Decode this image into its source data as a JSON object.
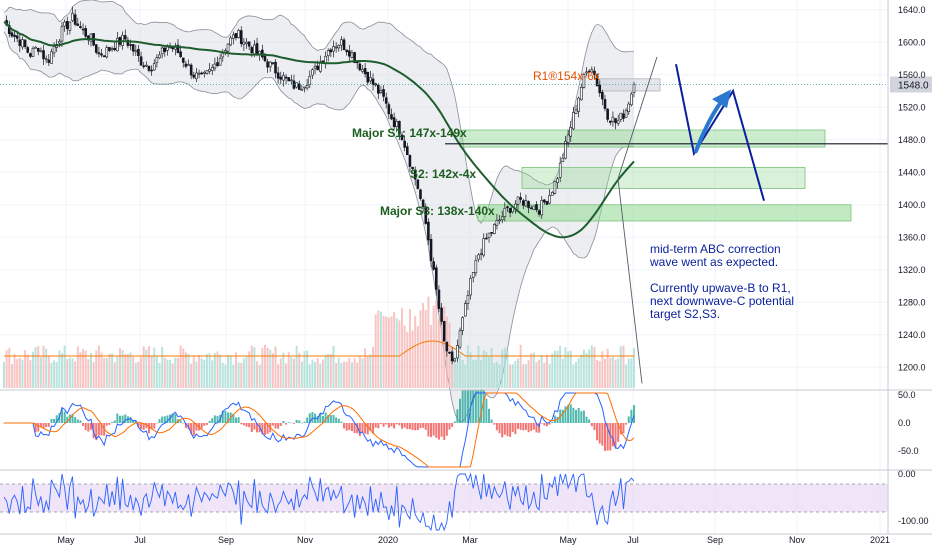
{
  "chart_data": {
    "type": "candlestick",
    "price_axis": {
      "ticks": [
        1640.0,
        1600.0,
        1560.0,
        1520.0,
        1480.0,
        1440.0,
        1400.0,
        1360.0,
        1320.0,
        1280.0,
        1240.0,
        1200.0
      ],
      "current_price": "1548.0",
      "ylim": [
        1172,
        1652
      ]
    },
    "time_axis": {
      "labels": [
        "May",
        "Jul",
        "Sep",
        "Nov",
        "2020",
        "Mar",
        "May",
        "Jul",
        "Sep",
        "Nov",
        "2021"
      ]
    },
    "macd_axis": {
      "ticks": [
        "50.0",
        "0.0",
        "-50.0"
      ]
    },
    "rsi_axis": {
      "ticks": [
        "0.00",
        "-100.00"
      ]
    },
    "price_series_approx": [
      1625,
      1610,
      1600,
      1585,
      1595,
      1575,
      1600,
      1618,
      1630,
      1615,
      1605,
      1585,
      1590,
      1598,
      1605,
      1590,
      1575,
      1570,
      1582,
      1596,
      1590,
      1575,
      1560,
      1555,
      1565,
      1582,
      1600,
      1610,
      1600,
      1590,
      1580,
      1570,
      1560,
      1550,
      1545,
      1552,
      1565,
      1582,
      1596,
      1600,
      1590,
      1575,
      1560,
      1545,
      1530,
      1505,
      1490,
      1455,
      1420,
      1370,
      1300,
      1230,
      1200,
      1250,
      1300,
      1340,
      1360,
      1375,
      1390,
      1400,
      1405,
      1400,
      1395,
      1408,
      1430,
      1470,
      1510,
      1550,
      1575,
      1540,
      1510,
      1500,
      1515,
      1548
    ],
    "levels": [
      {
        "label": "R1®154x-6x",
        "low": 1540,
        "high": 1555
      },
      {
        "label": "Major S1: 147x-149x",
        "low": 1471,
        "high": 1492
      },
      {
        "label": "S2: 142x-4x",
        "low": 1420,
        "high": 1446
      },
      {
        "label": "Major S3: 138x-140x",
        "low": 1380,
        "high": 1400
      }
    ],
    "projection": [
      1573,
      1463,
      1540,
      1405
    ],
    "annotation_lines": [
      "mid-term ABC correction",
      "wave went as expected.",
      "",
      "Currently upwave-B to R1,",
      "next downwave-C potential",
      "target S2,S3."
    ]
  },
  "colors": {
    "up": "#26a69a",
    "down": "#ef5350",
    "candle_dark": "#131722",
    "ma": "#1e5e2e",
    "band": "#b2b5be",
    "zone_green": "#8fd890",
    "projection": "#0a1f9c",
    "arrow": "#2b78d0",
    "macd_line": "#2962ff",
    "signal_line": "#ff6d00",
    "rsi_line": "#2962ff",
    "rsi_fill": "#e8d8f5",
    "label_green": "#1b5e20",
    "r1_label": "#e65100",
    "price_badge_bg": "#d1d4dc"
  }
}
